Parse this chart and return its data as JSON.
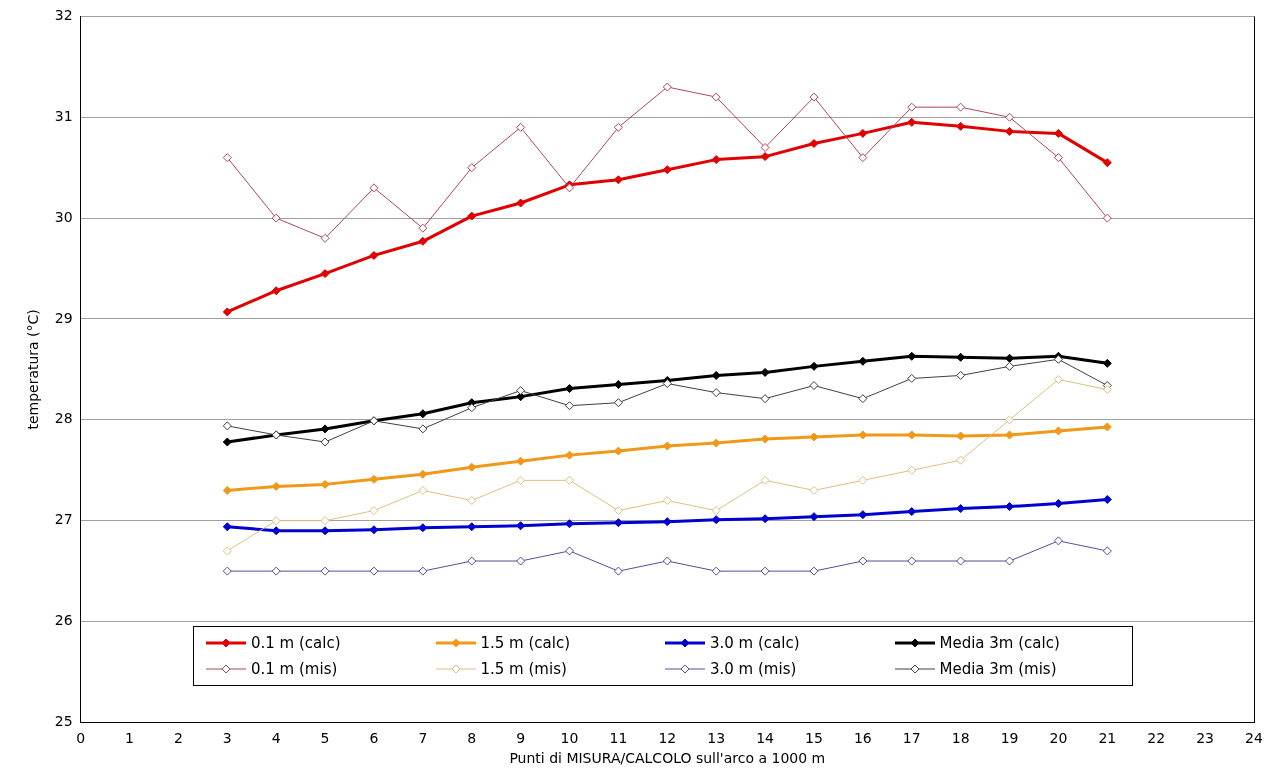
{
  "chart_data": {
    "type": "line",
    "xlabel": "Punti di MISURA/CALCOLO sull'arco a 1000 m",
    "ylabel": "temperatura (°C)",
    "x": [
      3,
      4,
      5,
      6,
      7,
      8,
      9,
      10,
      11,
      12,
      13,
      14,
      15,
      16,
      17,
      18,
      19,
      20,
      21
    ],
    "xlim": [
      0,
      24
    ],
    "xticks": [
      0,
      1,
      2,
      3,
      4,
      5,
      6,
      7,
      8,
      9,
      10,
      11,
      12,
      13,
      14,
      15,
      16,
      17,
      18,
      19,
      20,
      21,
      22,
      23,
      24
    ],
    "ylim": [
      25,
      32
    ],
    "yticks": [
      25,
      26,
      27,
      28,
      29,
      30,
      31,
      32
    ],
    "grid": "y",
    "legend": "bottom",
    "marker": "diamond",
    "line_style": "solid",
    "series": [
      {
        "name": "0.1 m (calc)",
        "color": "#e00000",
        "values": [
          29.07,
          29.28,
          29.45,
          29.63,
          29.77,
          30.02,
          30.15,
          30.33,
          30.38,
          30.48,
          30.58,
          30.61,
          30.74,
          30.84,
          30.95,
          30.91,
          30.86,
          30.84,
          30.55
        ]
      },
      {
        "name": "1.5 m (calc)",
        "color": "#f09818",
        "values": [
          27.3,
          27.34,
          27.36,
          27.41,
          27.46,
          27.53,
          27.59,
          27.65,
          27.69,
          27.74,
          27.77,
          27.81,
          27.83,
          27.85,
          27.85,
          27.84,
          27.85,
          27.89,
          27.93
        ]
      },
      {
        "name": "3.0 m (calc)",
        "color": "#0000d0",
        "values": [
          26.94,
          26.9,
          26.9,
          26.91,
          26.93,
          26.94,
          26.95,
          26.97,
          26.98,
          26.99,
          27.01,
          27.02,
          27.04,
          27.06,
          27.09,
          27.12,
          27.14,
          27.17,
          27.21
        ]
      },
      {
        "name": "Media 3m (calc)",
        "color": "#000000",
        "values": [
          27.78,
          27.85,
          27.91,
          27.99,
          28.06,
          28.17,
          28.23,
          28.31,
          28.35,
          28.39,
          28.44,
          28.47,
          28.53,
          28.58,
          28.63,
          28.62,
          28.61,
          28.63,
          28.56
        ]
      },
      {
        "name": "0.1 m (mis)",
        "color": "#b04858",
        "values": [
          30.6,
          30.0,
          29.8,
          30.3,
          29.9,
          30.5,
          30.9,
          30.3,
          30.9,
          31.3,
          31.2,
          30.7,
          31.2,
          30.6,
          31.1,
          31.1,
          31.0,
          30.6,
          30.0
        ]
      },
      {
        "name": "1.5 m (mis)",
        "color": "#dcc080",
        "values": [
          26.7,
          27.0,
          27.0,
          27.1,
          27.3,
          27.2,
          27.4,
          27.4,
          27.1,
          27.2,
          27.1,
          27.4,
          27.3,
          27.4,
          27.5,
          27.6,
          28.0,
          28.4,
          28.3
        ]
      },
      {
        "name": "3.0 m (mis)",
        "color": "#505098",
        "values": [
          26.5,
          26.5,
          26.5,
          26.5,
          26.5,
          26.6,
          26.6,
          26.7,
          26.5,
          26.6,
          26.5,
          26.5,
          26.5,
          26.6,
          26.6,
          26.6,
          26.6,
          26.8,
          26.7
        ]
      },
      {
        "name": "Media 3m (mis)",
        "color": "#404040",
        "values": [
          27.94,
          27.85,
          27.78,
          27.99,
          27.91,
          28.12,
          28.29,
          28.14,
          28.17,
          28.36,
          28.27,
          28.21,
          28.34,
          28.21,
          28.41,
          28.44,
          28.53,
          28.6,
          28.34
        ]
      }
    ]
  }
}
